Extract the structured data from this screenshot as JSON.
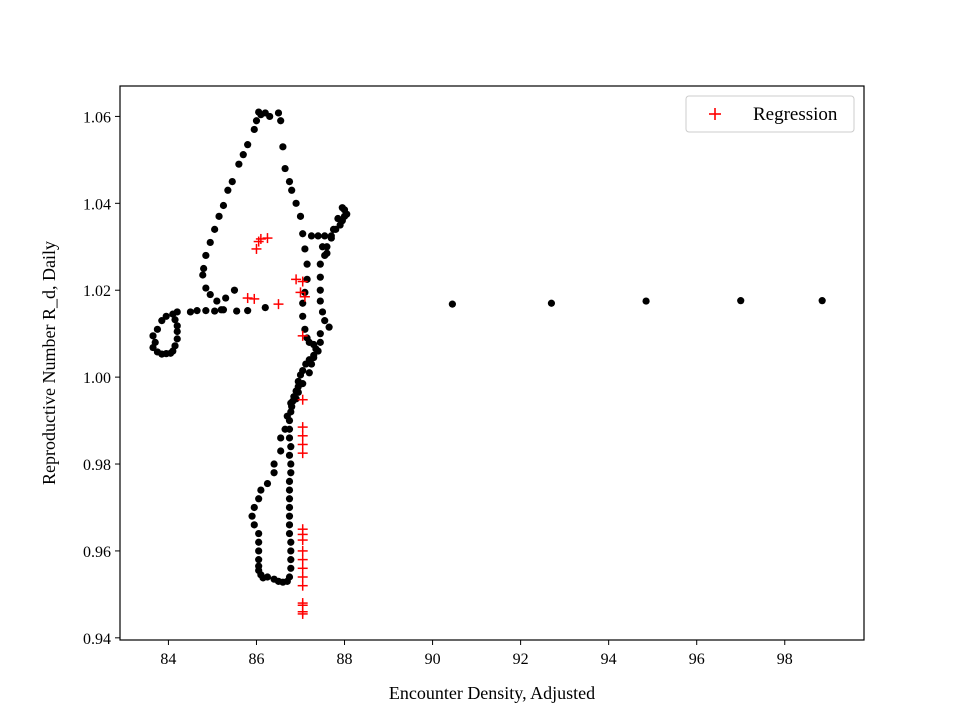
{
  "chart_data": {
    "type": "scatter",
    "title": "",
    "xlabel": "Encounter Density, Adjusted",
    "ylabel": "Reproductive Number R_d, Daily",
    "xlim": [
      82.9,
      99.8
    ],
    "ylim": [
      0.9395,
      1.067
    ],
    "x_ticks": [
      84,
      86,
      88,
      90,
      92,
      94,
      96,
      98
    ],
    "y_ticks": [
      0.94,
      0.96,
      0.98,
      1.0,
      1.02,
      1.04,
      1.06
    ],
    "x_tick_labels": [
      "84",
      "86",
      "88",
      "90",
      "92",
      "94",
      "96",
      "98"
    ],
    "y_tick_labels": [
      "0.94",
      "0.96",
      "0.98",
      "1.00",
      "1.02",
      "1.04",
      "1.06"
    ],
    "grid": false,
    "legend": {
      "position": "top-right",
      "entries": [
        "Regression"
      ]
    },
    "colors": {
      "data": "#000000",
      "regression": "#ff0000",
      "axes": "#000000"
    },
    "series": [
      {
        "marker": "dot",
        "color": "#000000",
        "points": [
          [
            86.5,
            1.0608
          ],
          [
            86.3,
            1.06
          ],
          [
            86.2,
            1.0608
          ],
          [
            86.05,
            1.061
          ],
          [
            86.1,
            1.0604
          ],
          [
            86.0,
            1.059
          ],
          [
            85.95,
            1.057
          ],
          [
            85.8,
            1.0535
          ],
          [
            85.7,
            1.0512
          ],
          [
            85.6,
            1.049
          ],
          [
            85.45,
            1.045
          ],
          [
            85.35,
            1.043
          ],
          [
            85.25,
            1.0395
          ],
          [
            85.15,
            1.037
          ],
          [
            85.05,
            1.034
          ],
          [
            84.95,
            1.031
          ],
          [
            84.85,
            1.028
          ],
          [
            84.8,
            1.025
          ],
          [
            84.78,
            1.0235
          ],
          [
            84.85,
            1.0205
          ],
          [
            84.95,
            1.019
          ],
          [
            85.1,
            1.0175
          ],
          [
            85.3,
            1.0182
          ],
          [
            85.5,
            1.02
          ],
          [
            85.25,
            1.0155
          ],
          [
            85.05,
            1.0152
          ],
          [
            84.85,
            1.0153
          ],
          [
            84.65,
            1.0153
          ],
          [
            84.5,
            1.015
          ],
          [
            84.2,
            1.015
          ],
          [
            84.1,
            1.0145
          ],
          [
            83.95,
            1.014
          ],
          [
            83.85,
            1.013
          ],
          [
            83.75,
            1.011
          ],
          [
            83.65,
            1.0095
          ],
          [
            83.7,
            1.008
          ],
          [
            83.65,
            1.0068
          ],
          [
            83.75,
            1.0058
          ],
          [
            83.85,
            1.0053
          ],
          [
            83.95,
            1.0054
          ],
          [
            84.05,
            1.0055
          ],
          [
            84.1,
            1.006
          ],
          [
            84.15,
            1.0072
          ],
          [
            84.2,
            1.0088
          ],
          [
            84.2,
            1.0105
          ],
          [
            84.2,
            1.0118
          ],
          [
            84.15,
            1.0132
          ],
          [
            85.2,
            1.0155
          ],
          [
            85.55,
            1.0152
          ],
          [
            85.8,
            1.0153
          ],
          [
            86.2,
            1.016
          ],
          [
            86.55,
            1.059
          ],
          [
            86.6,
            1.053
          ],
          [
            86.65,
            1.048
          ],
          [
            86.75,
            1.045
          ],
          [
            86.8,
            1.043
          ],
          [
            86.9,
            1.04
          ],
          [
            87.0,
            1.037
          ],
          [
            87.05,
            1.033
          ],
          [
            87.1,
            1.0295
          ],
          [
            87.15,
            1.026
          ],
          [
            87.15,
            1.0225
          ],
          [
            87.1,
            1.0195
          ],
          [
            87.05,
            1.017
          ],
          [
            87.05,
            1.014
          ],
          [
            87.1,
            1.011
          ],
          [
            87.15,
            1.009
          ],
          [
            87.2,
            1.008
          ],
          [
            87.3,
            1.0075
          ],
          [
            87.35,
            1.0065
          ],
          [
            87.3,
            1.005
          ],
          [
            87.2,
            1.004
          ],
          [
            87.12,
            1.003
          ],
          [
            87.05,
            1.0015
          ],
          [
            87.0,
            1.0005
          ],
          [
            86.95,
            0.999
          ],
          [
            86.95,
            0.9978
          ],
          [
            86.9,
            0.9968
          ],
          [
            86.85,
            0.9955
          ],
          [
            86.82,
            0.9944
          ],
          [
            86.8,
            0.9932
          ],
          [
            86.78,
            0.992
          ],
          [
            86.75,
            0.99
          ],
          [
            86.75,
            0.988
          ],
          [
            86.75,
            0.986
          ],
          [
            86.78,
            0.984
          ],
          [
            86.75,
            0.982
          ],
          [
            86.78,
            0.98
          ],
          [
            86.78,
            0.978
          ],
          [
            86.75,
            0.976
          ],
          [
            86.75,
            0.974
          ],
          [
            86.75,
            0.972
          ],
          [
            86.75,
            0.97
          ],
          [
            86.75,
            0.968
          ],
          [
            86.75,
            0.966
          ],
          [
            86.75,
            0.964
          ],
          [
            86.78,
            0.962
          ],
          [
            86.78,
            0.96
          ],
          [
            86.78,
            0.958
          ],
          [
            86.78,
            0.956
          ],
          [
            86.75,
            0.954
          ],
          [
            86.7,
            0.953
          ],
          [
            86.6,
            0.9528
          ],
          [
            86.5,
            0.953
          ],
          [
            86.4,
            0.9535
          ],
          [
            86.25,
            0.954
          ],
          [
            86.15,
            0.9538
          ],
          [
            86.1,
            0.9545
          ],
          [
            86.05,
            0.9555
          ],
          [
            86.05,
            0.9565
          ],
          [
            86.05,
            0.958
          ],
          [
            86.05,
            0.96
          ],
          [
            86.05,
            0.962
          ],
          [
            86.05,
            0.964
          ],
          [
            85.95,
            0.966
          ],
          [
            85.9,
            0.968
          ],
          [
            85.95,
            0.97
          ],
          [
            86.05,
            0.972
          ],
          [
            86.1,
            0.974
          ],
          [
            86.25,
            0.9755
          ],
          [
            86.4,
            0.978
          ],
          [
            86.4,
            0.98
          ],
          [
            86.55,
            0.983
          ],
          [
            86.55,
            0.986
          ],
          [
            86.65,
            0.988
          ],
          [
            86.7,
            0.991
          ],
          [
            86.78,
            0.994
          ],
          [
            86.9,
            0.995
          ],
          [
            86.95,
            0.9965
          ],
          [
            87.05,
            0.9985
          ],
          [
            87.2,
            1.001
          ],
          [
            87.25,
            1.003
          ],
          [
            87.3,
            1.0045
          ],
          [
            87.4,
            1.006
          ],
          [
            87.45,
            1.008
          ],
          [
            87.45,
            1.01
          ],
          [
            87.65,
            1.0115
          ],
          [
            87.55,
            1.013
          ],
          [
            87.5,
            1.015
          ],
          [
            87.45,
            1.0175
          ],
          [
            87.45,
            1.02
          ],
          [
            87.45,
            1.023
          ],
          [
            87.45,
            1.026
          ],
          [
            87.55,
            1.028
          ],
          [
            87.6,
            1.03
          ],
          [
            87.7,
            1.032
          ],
          [
            87.8,
            1.034
          ],
          [
            87.9,
            1.035
          ],
          [
            87.95,
            1.036
          ],
          [
            88.0,
            1.037
          ],
          [
            88.05,
            1.0375
          ],
          [
            88.0,
            1.0385
          ],
          [
            87.95,
            1.039
          ],
          [
            87.85,
            1.0365
          ],
          [
            87.75,
            1.034
          ],
          [
            87.7,
            1.0325
          ],
          [
            87.55,
            1.0325
          ],
          [
            87.4,
            1.0325
          ],
          [
            87.25,
            1.0325
          ],
          [
            87.5,
            1.03
          ],
          [
            87.6,
            1.0285
          ],
          [
            90.45,
            1.0168
          ],
          [
            92.7,
            1.017
          ],
          [
            94.85,
            1.0175
          ],
          [
            97.0,
            1.0176
          ],
          [
            98.85,
            1.0176
          ]
        ]
      },
      {
        "name": "Regression",
        "marker": "plus",
        "color": "#ff0000",
        "points": [
          [
            86.0,
            1.0295
          ],
          [
            86.05,
            1.0312
          ],
          [
            86.1,
            1.0318
          ],
          [
            86.25,
            1.032
          ],
          [
            85.8,
            1.0182
          ],
          [
            85.95,
            1.018
          ],
          [
            86.5,
            1.0168
          ],
          [
            86.9,
            1.0225
          ],
          [
            87.05,
            1.022
          ],
          [
            87.0,
            1.0195
          ],
          [
            87.1,
            1.0185
          ],
          [
            87.05,
            1.0095
          ],
          [
            87.05,
            0.9948
          ],
          [
            87.05,
            0.9885
          ],
          [
            87.05,
            0.9865
          ],
          [
            87.05,
            0.9845
          ],
          [
            87.05,
            0.9825
          ],
          [
            87.05,
            0.965
          ],
          [
            87.05,
            0.9638
          ],
          [
            87.05,
            0.9625
          ],
          [
            87.05,
            0.96
          ],
          [
            87.05,
            0.958
          ],
          [
            87.05,
            0.956
          ],
          [
            87.05,
            0.954
          ],
          [
            87.05,
            0.952
          ],
          [
            87.05,
            0.948
          ],
          [
            87.05,
            0.9475
          ],
          [
            87.05,
            0.946
          ],
          [
            87.05,
            0.9455
          ]
        ]
      }
    ]
  }
}
